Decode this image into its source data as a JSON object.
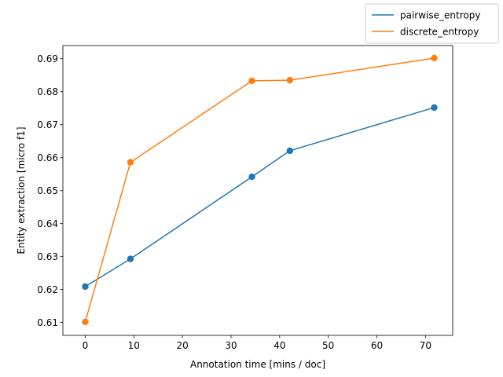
{
  "chart_data": {
    "type": "line",
    "title": "",
    "xlabel": "Annotation time [mins / doc]",
    "ylabel": "Entity extraction [micro f1]",
    "xlim": [
      -4.6,
      75.6
    ],
    "ylim": [
      0.6061,
      0.694
    ],
    "xticks": [
      0,
      10,
      20,
      30,
      40,
      50,
      60,
      70
    ],
    "yticks": [
      0.61,
      0.62,
      0.63,
      0.64,
      0.65,
      0.66,
      0.67,
      0.68,
      0.69
    ],
    "grid": false,
    "legend_position": "top-right",
    "markers": true,
    "series": [
      {
        "name": "pairwise_entropy",
        "color": "#1f77b4",
        "x": [
          0,
          9.3,
          34.3,
          42.1,
          71.8
        ],
        "y": [
          0.6209,
          0.6293,
          0.6542,
          0.6621,
          0.6752
        ]
      },
      {
        "name": "discrete_entropy",
        "color": "#ff7f0e",
        "x": [
          0,
          9.3,
          34.3,
          42.1,
          71.8
        ],
        "y": [
          0.6102,
          0.6586,
          0.6833,
          0.6835,
          0.6902
        ]
      }
    ]
  }
}
